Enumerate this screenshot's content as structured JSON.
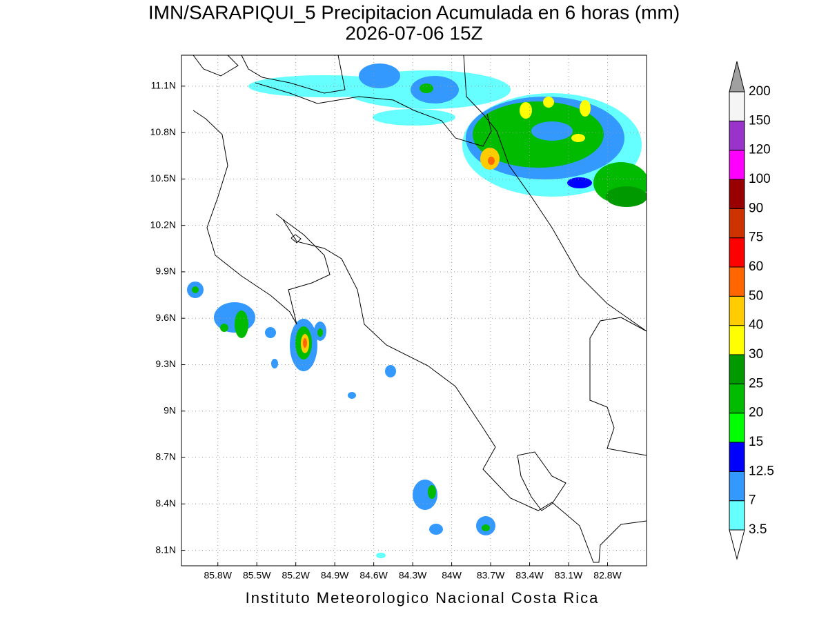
{
  "header": {
    "title": "IMN/SARAPIQUI_5 Precipitacion Acumulada en 6 horas (mm)",
    "subtitle": "2026-07-06 15Z"
  },
  "map": {
    "lonlim": [
      -86.08,
      -82.5
    ],
    "latlim": [
      8.0,
      11.3
    ],
    "lon_ticks": [
      {
        "value": -85.8,
        "label": "85.8W"
      },
      {
        "value": -85.5,
        "label": "85.5W"
      },
      {
        "value": -85.2,
        "label": "85.2W"
      },
      {
        "value": -84.9,
        "label": "84.9W"
      },
      {
        "value": -84.6,
        "label": "84.6W"
      },
      {
        "value": -84.3,
        "label": "84.3W"
      },
      {
        "value": -84.0,
        "label": "84W"
      },
      {
        "value": -83.7,
        "label": "83.7W"
      },
      {
        "value": -83.4,
        "label": "83.4W"
      },
      {
        "value": -83.1,
        "label": "83.1W"
      },
      {
        "value": -82.8,
        "label": "82.8W"
      }
    ],
    "lat_ticks": [
      {
        "value": 8.1,
        "label": "8.1N"
      },
      {
        "value": 8.4,
        "label": "8.4N"
      },
      {
        "value": 8.7,
        "label": "8.7N"
      },
      {
        "value": 9.0,
        "label": "9N"
      },
      {
        "value": 9.3,
        "label": "9.3N"
      },
      {
        "value": 9.6,
        "label": "9.6N"
      },
      {
        "value": 9.9,
        "label": "9.9N"
      },
      {
        "value": 10.2,
        "label": "10.2N"
      },
      {
        "value": 10.5,
        "label": "10.5N"
      },
      {
        "value": 10.8,
        "label": "10.8N"
      },
      {
        "value": 11.1,
        "label": "11.1N"
      }
    ]
  },
  "colorbar": {
    "levels": [
      3.5,
      7,
      12.5,
      15,
      20,
      25,
      30,
      40,
      50,
      60,
      75,
      90,
      100,
      120,
      150,
      200
    ],
    "colors": [
      "#66ffff",
      "#3399ff",
      "#0000ff",
      "#00ff00",
      "#00bb00",
      "#009900",
      "#ffff00",
      "#ffcc00",
      "#ff6600",
      "#ff0000",
      "#cc3300",
      "#990000",
      "#ff00ff",
      "#9933cc",
      "#f5f5f5"
    ],
    "under_color": "#ffffff",
    "over_color": "#a0a0a0"
  },
  "footer": "Instituto Meteorologico Nacional Costa Rica"
}
